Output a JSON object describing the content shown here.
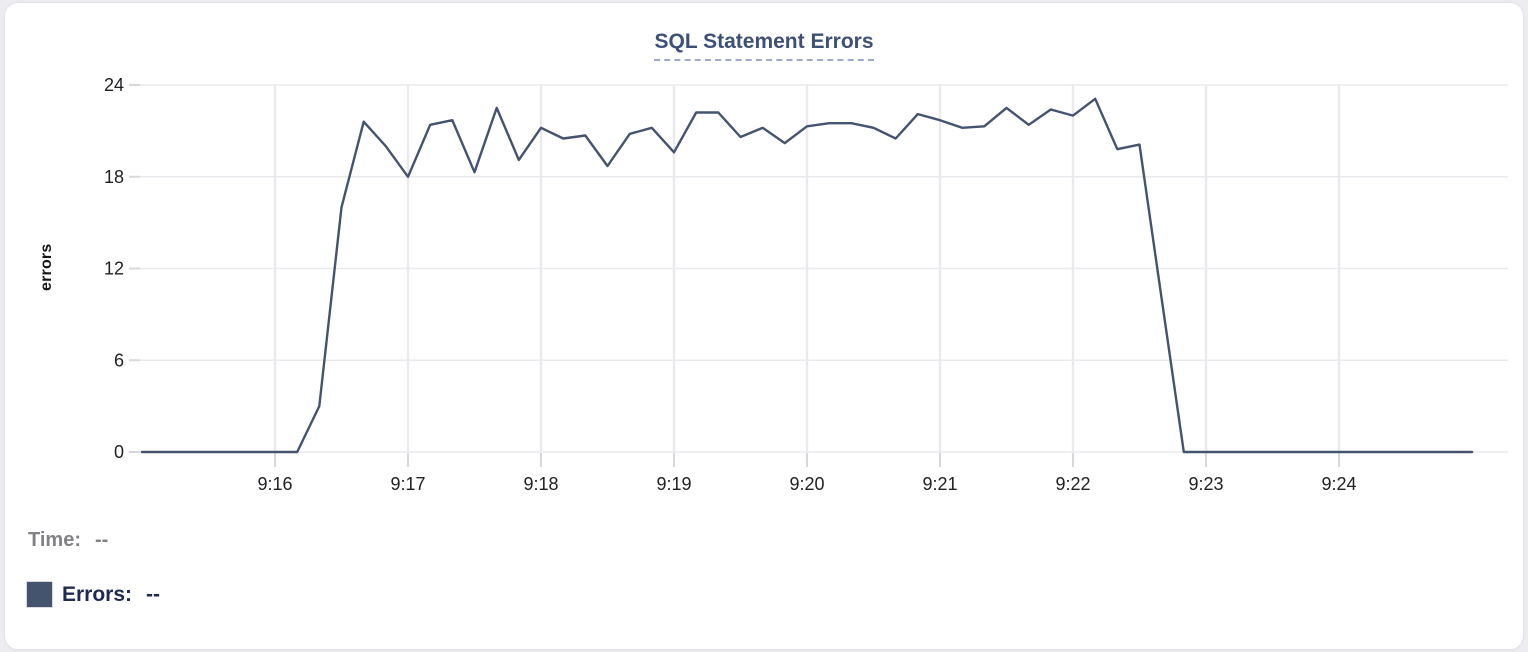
{
  "chart": {
    "title": "SQL Statement Errors"
  },
  "legend": {
    "time_label": "Time:",
    "time_value": "--",
    "errors_label": "Errors:",
    "errors_value": "--",
    "swatch_color": "#45546e"
  },
  "colors": {
    "line": "#44536f",
    "title_text": "#3d5077",
    "title_underline": "#9daac8",
    "gridline": "#eaeaee",
    "tick_mark": "#d8d8dc",
    "axis_text": "#202124",
    "time_legend_text": "#818186",
    "errors_legend_text": "#1d2b52",
    "card_background": "#ffffff",
    "card_border": "#e3e3e8",
    "page_background": "#ededf1"
  },
  "chart_data": {
    "type": "line",
    "title": "SQL Statement Errors",
    "xlabel": "",
    "ylabel": "errors",
    "ylim": [
      0,
      24
    ],
    "y_ticks": [
      0,
      6,
      12,
      18,
      24
    ],
    "x_tick_labels": [
      "9:16",
      "9:17",
      "9:18",
      "9:19",
      "9:20",
      "9:21",
      "9:22",
      "9:23",
      "9:24"
    ],
    "grid": true,
    "legend_position": "bottom-left",
    "series": [
      {
        "name": "Errors",
        "color": "#44536f",
        "x": [
          "9:15:00",
          "9:15:10",
          "9:15:20",
          "9:15:30",
          "9:15:40",
          "9:15:50",
          "9:16:00",
          "9:16:10",
          "9:16:20",
          "9:16:30",
          "9:16:40",
          "9:16:50",
          "9:17:00",
          "9:17:10",
          "9:17:20",
          "9:17:30",
          "9:17:40",
          "9:17:50",
          "9:18:00",
          "9:18:10",
          "9:18:20",
          "9:18:30",
          "9:18:40",
          "9:18:50",
          "9:19:00",
          "9:19:10",
          "9:19:20",
          "9:19:30",
          "9:19:40",
          "9:19:50",
          "9:20:00",
          "9:20:10",
          "9:20:20",
          "9:20:30",
          "9:20:40",
          "9:20:50",
          "9:21:00",
          "9:21:10",
          "9:21:20",
          "9:21:30",
          "9:21:40",
          "9:21:50",
          "9:22:00",
          "9:22:10",
          "9:22:20",
          "9:22:30",
          "9:22:40",
          "9:22:50",
          "9:23:00",
          "9:23:10",
          "9:23:20",
          "9:23:30",
          "9:23:40",
          "9:23:50",
          "9:24:00",
          "9:24:10",
          "9:24:20",
          "9:24:30",
          "9:24:40",
          "9:24:50",
          "9:25:00"
        ],
        "values": [
          0,
          0,
          0,
          0,
          0,
          0,
          0,
          0,
          3,
          16,
          21.6,
          20,
          18,
          21.4,
          21.7,
          18.3,
          22.5,
          19.1,
          21.2,
          20.5,
          20.7,
          18.7,
          20.8,
          21.2,
          19.6,
          22.2,
          22.2,
          20.6,
          21.2,
          20.2,
          21.3,
          21.5,
          21.5,
          21.2,
          20.5,
          22.1,
          21.7,
          21.2,
          21.3,
          22.5,
          21.4,
          22.4,
          22,
          23.1,
          19.8,
          20.1,
          10,
          0,
          0,
          0,
          0,
          0,
          0,
          0,
          0,
          0,
          0,
          0,
          0,
          0,
          0
        ]
      }
    ]
  }
}
